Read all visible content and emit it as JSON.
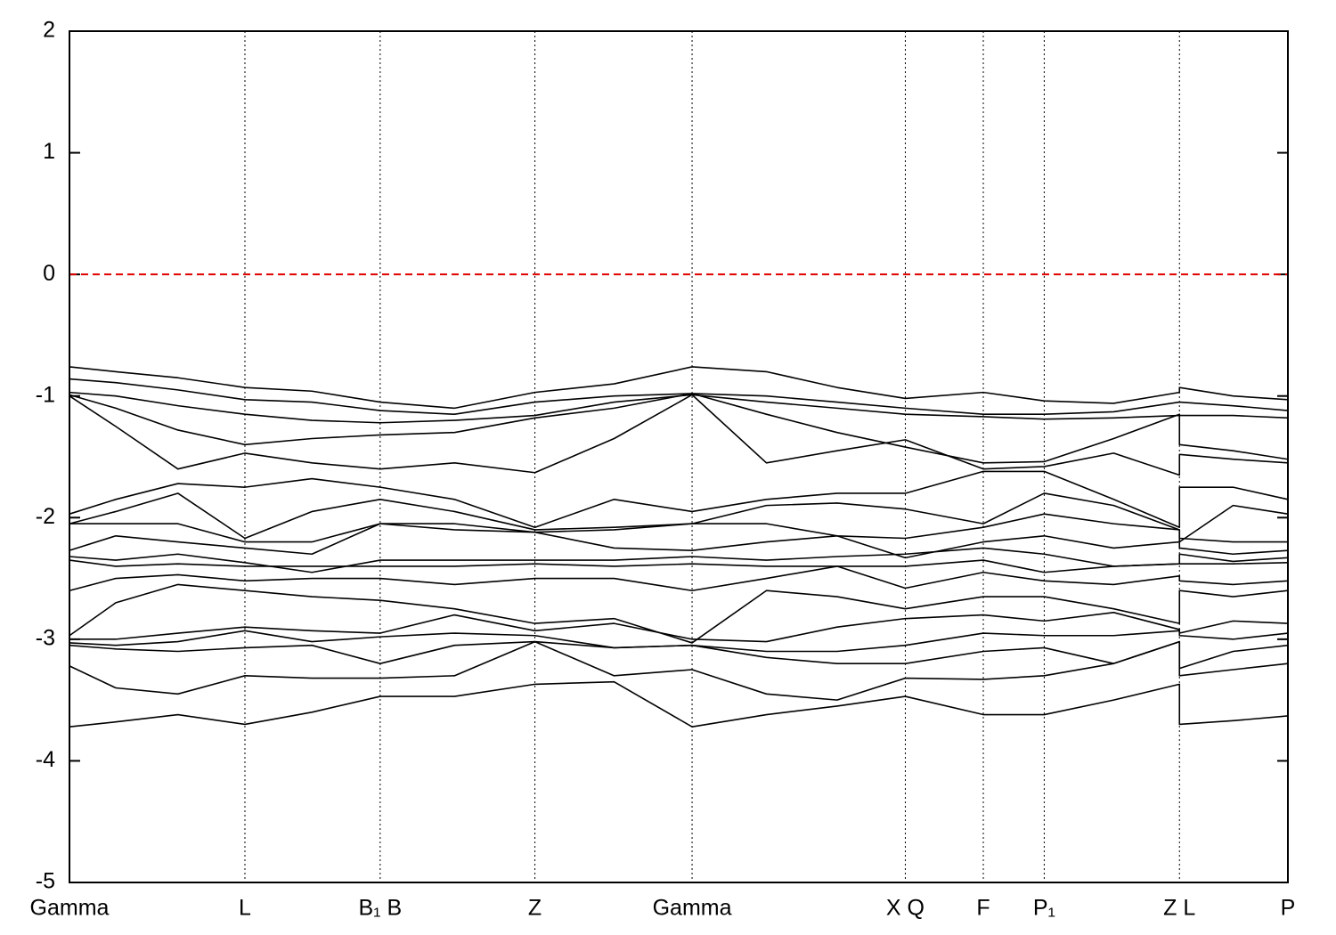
{
  "chart_data": {
    "type": "line",
    "x": [
      0,
      0.038,
      0.089,
      0.144,
      0.199,
      0.255,
      0.316,
      0.382,
      0.447,
      0.511,
      0.572,
      0.63,
      0.686,
      0.75,
      0.8,
      0.857,
      0.911,
      0.911,
      0.955,
      1
    ],
    "xlim": [
      0,
      1
    ],
    "xticks": [
      {
        "value": 0,
        "label": "Gamma"
      },
      {
        "value": 0.144,
        "label": "L"
      },
      {
        "value": 0.255,
        "label": "B₁ B"
      },
      {
        "value": 0.382,
        "label": "Z"
      },
      {
        "value": 0.511,
        "label": "Gamma"
      },
      {
        "value": 0.686,
        "label": "X Q"
      },
      {
        "value": 0.75,
        "label": "F"
      },
      {
        "value": 0.8,
        "label": "P₁"
      },
      {
        "value": 0.911,
        "label": "Z L"
      },
      {
        "value": 1,
        "label": "P"
      }
    ],
    "ylim": [
      -5,
      2
    ],
    "yticks": [
      2,
      1,
      0,
      -1,
      -2,
      -3,
      -4,
      -5
    ],
    "xgrid": true,
    "line_color": "#000000",
    "reference_line": {
      "value": 0,
      "color": "#e00000",
      "style": "dashed"
    },
    "series": [
      {
        "values": [
          -0.76,
          -0.8,
          -0.85,
          -0.93,
          -0.96,
          -1.05,
          -1.1,
          -0.97,
          -0.9,
          -0.76,
          -0.8,
          -0.93,
          -1.02,
          -0.97,
          -1.04,
          -1.06,
          -0.97,
          -0.93,
          -1.0,
          -1.03
        ]
      },
      {
        "values": [
          -0.86,
          -0.89,
          -0.95,
          -1.03,
          -1.05,
          -1.12,
          -1.15,
          -1.05,
          -1.0,
          -0.98,
          -1.0,
          -1.05,
          -1.1,
          -1.15,
          -1.15,
          -1.13,
          -1.05,
          -1.05,
          -1.08,
          -1.12
        ]
      },
      {
        "values": [
          -0.97,
          -1.0,
          -1.08,
          -1.15,
          -1.2,
          -1.22,
          -1.2,
          -1.16,
          -1.05,
          -0.99,
          -1.05,
          -1.1,
          -1.15,
          -1.17,
          -1.19,
          -1.18,
          -1.16,
          -1.16,
          -1.16,
          -1.18
        ]
      },
      {
        "values": [
          -0.99,
          -1.1,
          -1.28,
          -1.4,
          -1.35,
          -1.32,
          -1.3,
          -1.18,
          -1.1,
          -0.98,
          -1.15,
          -1.3,
          -1.42,
          -1.55,
          -1.54,
          -1.35,
          -1.15,
          -1.4,
          -1.45,
          -1.52
        ]
      },
      {
        "values": [
          -1.0,
          -1.25,
          -1.6,
          -1.47,
          -1.55,
          -1.6,
          -1.55,
          -1.63,
          -1.35,
          -0.99,
          -1.55,
          -1.45,
          -1.36,
          -1.6,
          -1.58,
          -1.47,
          -1.65,
          -1.48,
          -1.52,
          -1.55
        ]
      },
      {
        "values": [
          -1.97,
          -1.85,
          -1.72,
          -1.75,
          -1.68,
          -1.75,
          -1.85,
          -2.08,
          -1.85,
          -1.95,
          -1.85,
          -1.8,
          -1.8,
          -1.62,
          -1.62,
          -1.85,
          -2.08,
          -1.75,
          -1.75,
          -1.85
        ]
      },
      {
        "values": [
          -2.05,
          -1.95,
          -1.8,
          -2.17,
          -1.95,
          -1.85,
          -1.95,
          -2.1,
          -2.08,
          -2.05,
          -1.9,
          -1.88,
          -1.93,
          -2.05,
          -1.8,
          -1.9,
          -2.1,
          -2.2,
          -1.9,
          -1.97
        ]
      },
      {
        "values": [
          -2.05,
          -2.05,
          -2.05,
          -2.2,
          -2.2,
          -2.05,
          -2.05,
          -2.12,
          -2.1,
          -2.05,
          -2.05,
          -2.15,
          -2.17,
          -2.08,
          -1.97,
          -2.05,
          -2.1,
          -2.17,
          -2.2,
          -2.2
        ]
      },
      {
        "values": [
          -2.27,
          -2.15,
          -2.2,
          -2.25,
          -2.3,
          -2.05,
          -2.1,
          -2.12,
          -2.25,
          -2.27,
          -2.2,
          -2.15,
          -2.33,
          -2.2,
          -2.15,
          -2.25,
          -2.2,
          -2.25,
          -2.3,
          -2.27
        ]
      },
      {
        "values": [
          -2.32,
          -2.35,
          -2.3,
          -2.37,
          -2.45,
          -2.35,
          -2.35,
          -2.35,
          -2.35,
          -2.32,
          -2.35,
          -2.32,
          -2.3,
          -2.25,
          -2.3,
          -2.4,
          -2.38,
          -2.3,
          -2.36,
          -2.33
        ]
      },
      {
        "values": [
          -2.35,
          -2.4,
          -2.38,
          -2.4,
          -2.4,
          -2.4,
          -2.4,
          -2.38,
          -2.4,
          -2.38,
          -2.4,
          -2.4,
          -2.4,
          -2.35,
          -2.45,
          -2.4,
          -2.38,
          -2.38,
          -2.38,
          -2.37
        ]
      },
      {
        "values": [
          -2.6,
          -2.5,
          -2.47,
          -2.52,
          -2.5,
          -2.5,
          -2.55,
          -2.5,
          -2.5,
          -2.6,
          -2.5,
          -2.4,
          -2.58,
          -2.45,
          -2.52,
          -2.55,
          -2.48,
          -2.52,
          -2.55,
          -2.52
        ]
      },
      {
        "values": [
          -2.97,
          -2.7,
          -2.55,
          -2.6,
          -2.65,
          -2.68,
          -2.75,
          -2.87,
          -2.83,
          -3.03,
          -2.6,
          -2.65,
          -2.75,
          -2.65,
          -2.65,
          -2.75,
          -2.87,
          -2.6,
          -2.65,
          -2.6
        ]
      },
      {
        "values": [
          -3.0,
          -3.0,
          -2.95,
          -2.9,
          -2.93,
          -2.95,
          -2.8,
          -2.93,
          -2.87,
          -3.0,
          -3.02,
          -2.9,
          -2.83,
          -2.8,
          -2.85,
          -2.78,
          -2.92,
          -2.95,
          -2.85,
          -2.87
        ]
      },
      {
        "values": [
          -3.03,
          -3.05,
          -3.02,
          -2.93,
          -3.02,
          -2.98,
          -2.95,
          -2.97,
          -3.07,
          -3.05,
          -3.1,
          -3.1,
          -3.05,
          -2.95,
          -2.97,
          -2.97,
          -2.93,
          -2.97,
          -3.0,
          -2.95
        ]
      },
      {
        "values": [
          -3.05,
          -3.08,
          -3.1,
          -3.07,
          -3.05,
          -3.2,
          -3.05,
          -3.02,
          -3.07,
          -3.05,
          -3.15,
          -3.2,
          -3.2,
          -3.1,
          -3.07,
          -3.2,
          -3.02,
          -3.24,
          -3.1,
          -3.05
        ]
      },
      {
        "values": [
          -3.22,
          -3.4,
          -3.45,
          -3.3,
          -3.32,
          -3.32,
          -3.3,
          -3.02,
          -3.3,
          -3.25,
          -3.45,
          -3.5,
          -3.32,
          -3.33,
          -3.3,
          -3.2,
          -3.02,
          -3.3,
          -3.25,
          -3.2
        ]
      },
      {
        "values": [
          -3.72,
          -3.68,
          -3.62,
          -3.7,
          -3.6,
          -3.47,
          -3.47,
          -3.37,
          -3.35,
          -3.72,
          -3.62,
          -3.55,
          -3.47,
          -3.62,
          -3.62,
          -3.5,
          -3.37,
          -3.7,
          -3.67,
          -3.63
        ]
      }
    ]
  }
}
